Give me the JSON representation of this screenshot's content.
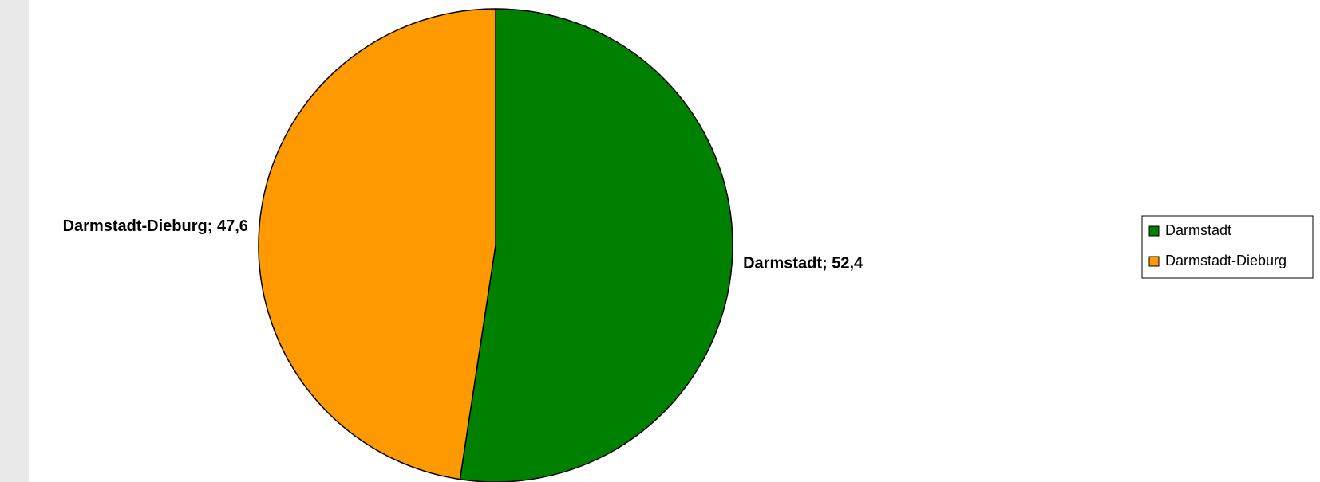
{
  "chart_data": {
    "type": "pie",
    "categories": [
      "Darmstadt",
      "Darmstadt-Dieburg"
    ],
    "values": [
      52.4,
      47.6
    ],
    "value_labels": [
      "Darmstadt; 52,4",
      "Darmstadt-Dieburg; 47,6"
    ],
    "colors": [
      "#008000",
      "#ff9900"
    ],
    "legend": "right"
  }
}
